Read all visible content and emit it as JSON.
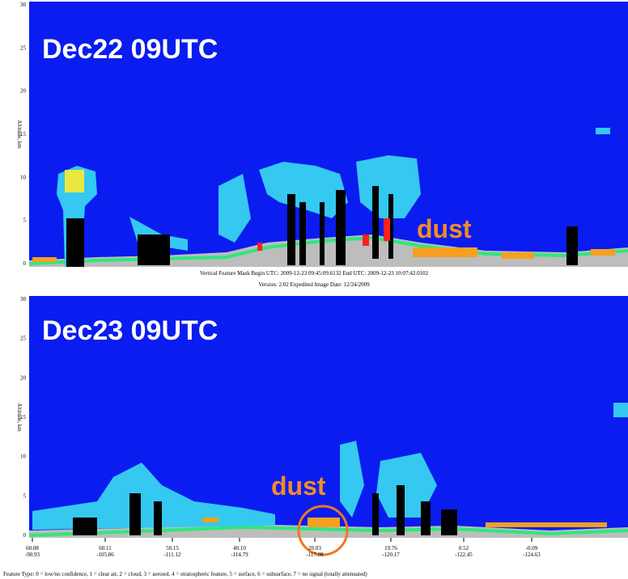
{
  "panels": [
    {
      "label": "Dec22 09UTC",
      "annotation": "dust",
      "axis_title": "Altitude, km",
      "yticks": [
        0,
        5,
        10,
        15,
        20,
        25,
        30
      ],
      "caption": [
        "Vertical Feature Mask    Begin UTC: 2009-12-23  09:45:09.6132    End UTC: 2009-12-23  10:07:42.0102",
        "Version: 2.02  Expedited    Image Date: 12/24/2009"
      ]
    },
    {
      "label": "Dec23 09UTC",
      "annotation": "dust",
      "axis_title": "Altitude, km",
      "yticks": [
        0,
        5,
        10,
        15,
        20,
        25,
        30
      ],
      "xticks": [
        [
          "60.08",
          "-90.93"
        ],
        [
          "60.11",
          "-105.86"
        ],
        [
          "50.15",
          "-111.12"
        ],
        [
          "40.10",
          "-114.79"
        ],
        [
          "20.03",
          "-117.08"
        ],
        [
          "19.76",
          "-120.17"
        ],
        [
          "0.52",
          "-122.45"
        ],
        [
          "-0.09",
          "-124.63"
        ]
      ]
    }
  ],
  "footer": "Feature Type: 0 = low/no confidence, 1 = clear air, 2 = cloud, 3 = aerosol, 4 = stratospheric feature, 5 = surface, 6 = subsurface, 7 = no signal (totally attenuated)"
}
